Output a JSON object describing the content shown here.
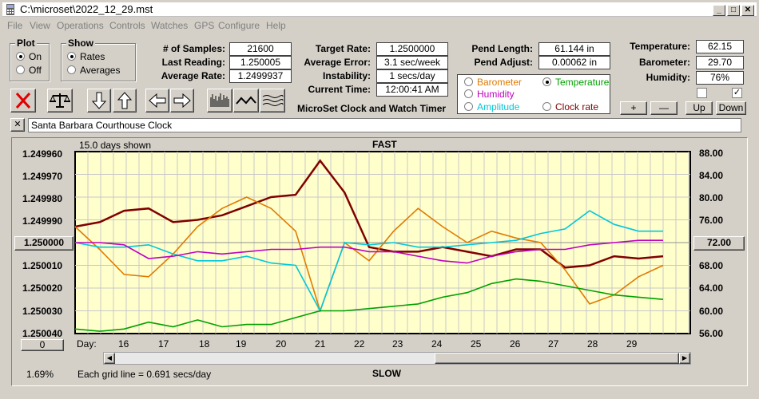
{
  "window": {
    "title": "C:\\microset\\2022_12_29.mst"
  },
  "menu": [
    "File",
    "View",
    "Operations",
    "Controls",
    "Watches",
    "GPS",
    "Configure",
    "Help"
  ],
  "plot_group": {
    "label": "Plot",
    "on": "On",
    "off": "Off",
    "selected": "On"
  },
  "show_group": {
    "label": "Show",
    "rates": "Rates",
    "averages": "Averages",
    "selected": "Rates"
  },
  "stats": {
    "samples_label": "# of Samples:",
    "samples": "21600",
    "last_label": "Last Reading:",
    "last": "1.250005",
    "avg_label": "Average Rate:",
    "avg": "1.2499937",
    "target_label": "Target Rate:",
    "target": "1.2500000",
    "avgerr_label": "Average Error:",
    "avgerr": "3.1 sec/week",
    "instab_label": "Instability:",
    "instab": "1 secs/day",
    "time_label": "Current Time:",
    "time": "12:00:41 AM",
    "pendlen_label": "Pend Length:",
    "pendlen": "61.144 in",
    "pendadj_label": "Pend Adjust:",
    "pendadj": "0.00062 in",
    "temp_label": "Temperature:",
    "temp": "62.15",
    "baro_label": "Barometer:",
    "baro": "29.70",
    "hum_label": "Humidity:",
    "hum": "76%"
  },
  "app_caption": "MicroSet Clock and Watch Timer",
  "overlay": {
    "barometer": "Barometer",
    "temperature": "Temperature",
    "humidity": "Humidity",
    "amplitude": "Amplitude",
    "clockrate": "Clock rate",
    "selected": "Temperature",
    "colors": {
      "barometer": "#e07a00",
      "temperature": "#00a000",
      "humidity": "#c000c0",
      "amplitude": "#00c8d8",
      "clockrate": "#800000"
    }
  },
  "adjust_buttons": {
    "plus": "+",
    "minus": "—",
    "up": "Up",
    "down": "Down"
  },
  "checkboxes": {
    "left": "",
    "right": "✓"
  },
  "clock_name": "Santa Barbara Courthouse Clock",
  "close_x": "✕",
  "chart": {
    "days_shown": "15.0 days shown",
    "fast": "FAST",
    "slow": "SLOW",
    "day_label": "Day:",
    "grid_note": "Each grid line = 0.691 secs/day",
    "zoom_pct": "1.69%",
    "center_left": "1.250000",
    "center_right": "72.00",
    "bottom_btn": "0"
  },
  "chart_data": {
    "type": "line",
    "x_label": "Day:",
    "x_ticks": [
      "16",
      "17",
      "18",
      "19",
      "20",
      "21",
      "22",
      "23",
      "24",
      "25",
      "26",
      "27",
      "28",
      "29"
    ],
    "left_axis": [
      "1.249960",
      "1.249970",
      "1.249980",
      "1.249990",
      "1.250000",
      "1.250010",
      "1.250020",
      "1.250030",
      "1.250040"
    ],
    "right_axis": [
      "88.00",
      "84.00",
      "80.00",
      "76.00",
      "72.00",
      "68.00",
      "64.00",
      "60.00",
      "56.00"
    ],
    "series": [
      {
        "name": "Clock rate",
        "color": "#800000",
        "values": [
          1.249993,
          1.249991,
          1.249986,
          1.249985,
          1.249991,
          1.24999,
          1.249988,
          1.249984,
          1.24998,
          1.249979,
          1.249964,
          1.249978,
          1.250002,
          1.250004,
          1.250004,
          1.250002,
          1.250004,
          1.250006,
          1.250003,
          1.250003,
          1.250011,
          1.25001,
          1.250006,
          1.250007,
          1.250006
        ]
      },
      {
        "name": "Barometer",
        "color": "#e07a00",
        "values": [
          1.249993,
          1.250003,
          1.250014,
          1.250015,
          1.250005,
          1.249993,
          1.249985,
          1.24998,
          1.249985,
          1.249995,
          1.25003,
          1.25,
          1.250008,
          1.249995,
          1.249985,
          1.249993,
          1.25,
          1.249995,
          1.249998,
          1.25,
          1.250012,
          1.250027,
          1.250023,
          1.250015,
          1.25001
        ]
      },
      {
        "name": "Amplitude",
        "color": "#00c8d8",
        "values": [
          1.25,
          1.250002,
          1.250002,
          1.250001,
          1.250005,
          1.250008,
          1.250008,
          1.250006,
          1.250009,
          1.25001,
          1.25003,
          1.25,
          1.250001,
          1.25,
          1.250002,
          1.250002,
          1.250001,
          1.25,
          1.249999,
          1.249996,
          1.249994,
          1.249986,
          1.249992,
          1.249995,
          1.249995
        ]
      },
      {
        "name": "Humidity",
        "color": "#c000c0",
        "values": [
          1.25,
          1.25,
          1.250001,
          1.250007,
          1.250006,
          1.250004,
          1.250005,
          1.250004,
          1.250003,
          1.250003,
          1.250002,
          1.250002,
          1.250004,
          1.250004,
          1.250006,
          1.250008,
          1.250009,
          1.250006,
          1.250004,
          1.250003,
          1.250003,
          1.250001,
          1.25,
          1.249999,
          1.249999
        ]
      },
      {
        "name": "Temperature",
        "color": "#00a000",
        "values": [
          1.250038,
          1.250039,
          1.250038,
          1.250035,
          1.250037,
          1.250034,
          1.250037,
          1.250036,
          1.250036,
          1.250033,
          1.25003,
          1.25003,
          1.250029,
          1.250028,
          1.250027,
          1.250024,
          1.250022,
          1.250018,
          1.250016,
          1.250017,
          1.250019,
          1.250021,
          1.250023,
          1.250024,
          1.250025
        ]
      }
    ],
    "ylim": [
      1.24996,
      1.25004
    ],
    "grid": true
  }
}
